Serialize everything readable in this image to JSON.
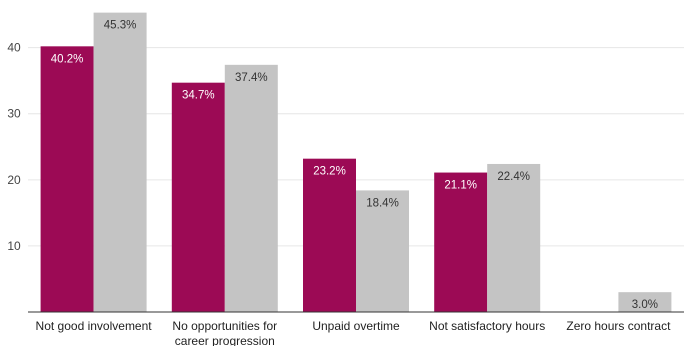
{
  "chart_data": {
    "type": "bar",
    "categories": [
      [
        "Not good involvement"
      ],
      [
        "No opportunities for",
        "career progression"
      ],
      [
        "Unpaid overtime"
      ],
      [
        "Not satisfactory hours"
      ],
      [
        "Zero hours contract"
      ]
    ],
    "series": [
      {
        "color": "#9c0a55",
        "label_color": "#ffffff",
        "values": [
          40.2,
          34.7,
          23.2,
          21.1,
          null
        ],
        "labels": [
          "40.2%",
          "34.7%",
          "23.2%",
          "21.1%",
          ""
        ]
      },
      {
        "color": "#c4c4c4",
        "label_color": "#333333",
        "values": [
          45.3,
          37.4,
          18.4,
          22.4,
          3.0
        ],
        "labels": [
          "45.3%",
          "37.4%",
          "18.4%",
          "22.4%",
          "3.0%"
        ]
      }
    ],
    "yticks": [
      10,
      20,
      30,
      40
    ],
    "ylim": [
      0,
      46
    ],
    "grid": true,
    "title": "",
    "xlabel": "",
    "ylabel": ""
  }
}
